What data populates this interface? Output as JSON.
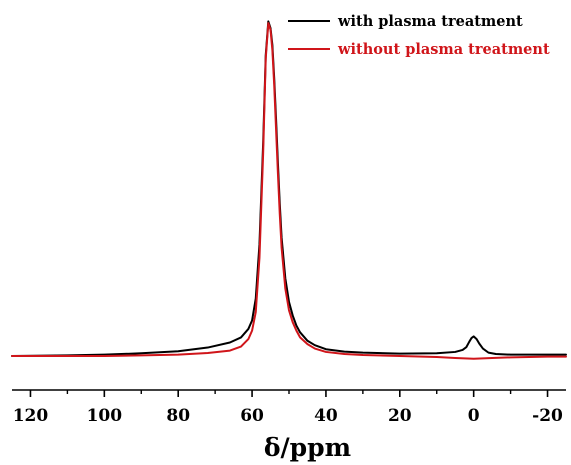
{
  "chart_data": {
    "type": "line",
    "title": "",
    "xlabel": "δ/ppm",
    "ylabel": "",
    "xlim": [
      125,
      -25
    ],
    "x_reversed": true,
    "xticks": [
      120,
      100,
      80,
      60,
      40,
      20,
      0,
      -20
    ],
    "xtick_labels": [
      "120",
      "100",
      "80",
      "60",
      "40",
      "20",
      "0",
      "-20"
    ],
    "y_axis_shown": false,
    "grid": false,
    "legend_position": "top-right",
    "series": [
      {
        "name": "with plasma treatment",
        "color": "#000000",
        "x": [
          125,
          110,
          100,
          90,
          80,
          72,
          66,
          63,
          61,
          60,
          59,
          58,
          57,
          56.3,
          55.6,
          55,
          54.5,
          54,
          53.5,
          53,
          52.5,
          52,
          51,
          50,
          49,
          48,
          47,
          45,
          43,
          40,
          35,
          30,
          20,
          10,
          5,
          3,
          2,
          1.2,
          0.6,
          0,
          -0.8,
          -1.5,
          -2.5,
          -4,
          -6,
          -10,
          -20,
          -25
        ],
        "y": [
          0.0,
          0.002,
          0.004,
          0.008,
          0.014,
          0.025,
          0.04,
          0.055,
          0.08,
          0.105,
          0.17,
          0.33,
          0.63,
          0.89,
          0.99,
          0.97,
          0.92,
          0.82,
          0.7,
          0.57,
          0.45,
          0.35,
          0.23,
          0.16,
          0.12,
          0.09,
          0.07,
          0.045,
          0.032,
          0.02,
          0.013,
          0.01,
          0.007,
          0.008,
          0.012,
          0.018,
          0.026,
          0.042,
          0.053,
          0.058,
          0.05,
          0.037,
          0.022,
          0.01,
          0.006,
          0.004,
          0.004,
          0.004
        ]
      },
      {
        "name": "without plasma treatment",
        "color": "#d0151a",
        "x": [
          125,
          110,
          100,
          90,
          80,
          72,
          66,
          63,
          61,
          60,
          59,
          58,
          57,
          56.3,
          55.6,
          55,
          54.5,
          54,
          53.5,
          53,
          52.5,
          52,
          51,
          50,
          49,
          48,
          47,
          45,
          43,
          40,
          35,
          30,
          20,
          10,
          5,
          0,
          -5,
          -10,
          -20,
          -25
        ],
        "y": [
          0.0,
          0.0,
          0.0,
          0.002,
          0.004,
          0.009,
          0.016,
          0.028,
          0.05,
          0.075,
          0.13,
          0.29,
          0.6,
          0.88,
          0.985,
          0.965,
          0.905,
          0.8,
          0.67,
          0.54,
          0.42,
          0.32,
          0.2,
          0.135,
          0.1,
          0.075,
          0.055,
          0.035,
          0.022,
          0.012,
          0.006,
          0.003,
          0.0,
          -0.003,
          -0.006,
          -0.008,
          -0.006,
          -0.004,
          -0.002,
          -0.002
        ]
      }
    ]
  }
}
